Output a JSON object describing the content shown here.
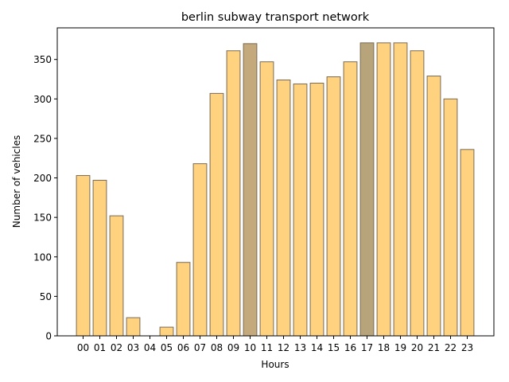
{
  "chart_data": {
    "type": "bar",
    "title": "berlin subway transport network",
    "xlabel": "Hours",
    "ylabel": "Number of vehicles",
    "categories": [
      "00",
      "01",
      "02",
      "03",
      "04",
      "05",
      "06",
      "07",
      "08",
      "09",
      "10",
      "11",
      "12",
      "13",
      "14",
      "15",
      "16",
      "17",
      "18",
      "19",
      "20",
      "21",
      "22",
      "23"
    ],
    "values": [
      203,
      197,
      152,
      23,
      0,
      11,
      93,
      218,
      307,
      361,
      370,
      347,
      324,
      319,
      320,
      328,
      347,
      371,
      371,
      371,
      361,
      329,
      300,
      236
    ],
    "highlighted": [
      "10",
      "17"
    ],
    "ylim": [
      0,
      390
    ],
    "yticks": [
      0,
      50,
      100,
      150,
      200,
      250,
      300,
      350
    ],
    "grid": false,
    "colors": {
      "bar": "#FFD280",
      "bar_highlight": "#C4A97C",
      "bar_highlight_peak": "#B8A47A",
      "bar_edge": "#7A6A55",
      "axis": "#000000"
    }
  }
}
